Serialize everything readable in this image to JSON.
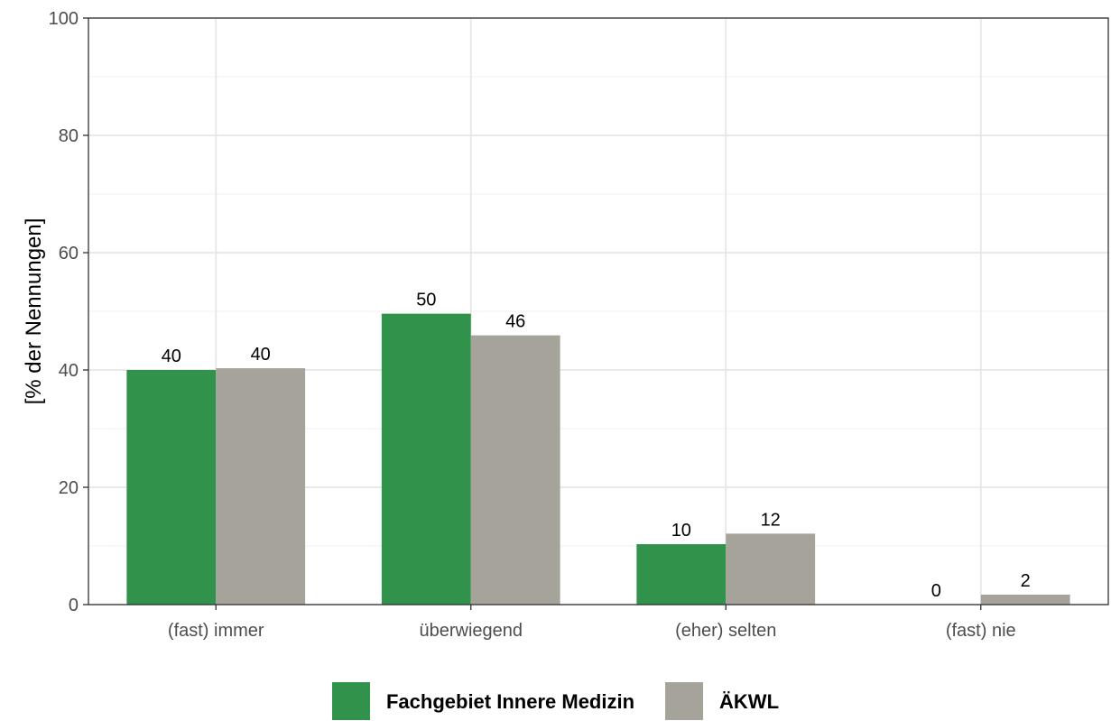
{
  "chart_data": {
    "type": "bar",
    "categories": [
      "(fast) immer",
      "überwiegend",
      "(eher) selten",
      "(fast) nie"
    ],
    "series": [
      {
        "name": "Fachgebiet Innere Medizin",
        "values": [
          40,
          49.6,
          10.3,
          0
        ],
        "labels": [
          "40",
          "50",
          "10",
          "0"
        ],
        "color": "#31934b"
      },
      {
        "name": "ÄKWL",
        "values": [
          40.3,
          45.9,
          12.1,
          1.7
        ],
        "labels": [
          "40",
          "46",
          "12",
          "2"
        ],
        "color": "#a6a39b"
      }
    ],
    "xlabel": "",
    "ylabel": "[% der Nennungen]",
    "ylim": [
      0,
      100
    ],
    "yticks": [
      "0",
      "20",
      "40",
      "60",
      "80",
      "100"
    ],
    "grid": true,
    "legend_position": "bottom"
  }
}
